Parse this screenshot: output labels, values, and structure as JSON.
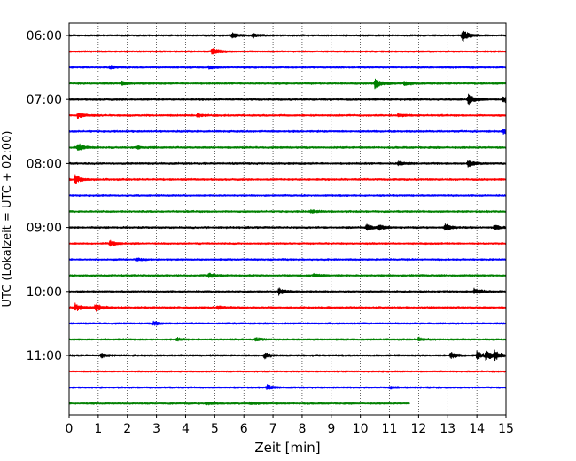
{
  "chart_data": {
    "type": "line",
    "chart_kind": "helicorder seismogram",
    "title": "",
    "xlabel": "Zeit  [min]",
    "ylabel": "UTC (Lokalzeit = UTC + 02:00)",
    "xlim": [
      0,
      15
    ],
    "x_ticks": [
      0,
      1,
      2,
      3,
      4,
      5,
      6,
      7,
      8,
      9,
      10,
      11,
      12,
      13,
      14,
      15
    ],
    "x_tick_labels": [
      "0",
      "1",
      "2",
      "3",
      "4",
      "5",
      "6",
      "7",
      "8",
      "9",
      "10",
      "11",
      "12",
      "13",
      "14",
      "15"
    ],
    "grid": {
      "x": true,
      "y": false,
      "style": "dotted"
    },
    "line_minutes": 15,
    "y_tick_labels": [
      "06:00",
      "07:00",
      "08:00",
      "09:00",
      "10:00",
      "11:00"
    ],
    "color_cycle": [
      "#000000",
      "#ff0000",
      "#0000ff",
      "#008000"
    ],
    "traces": [
      {
        "start": "06:00",
        "end_minute": 15,
        "color": "#000000",
        "noise": 0.28,
        "events": [
          {
            "t": 5.6,
            "a": 1.4
          },
          {
            "t": 6.3,
            "a": 0.9
          },
          {
            "t": 13.5,
            "a": 2.4
          }
        ]
      },
      {
        "start": "06:15",
        "end_minute": 15,
        "color": "#ff0000",
        "noise": 0.28,
        "events": [
          {
            "t": 4.9,
            "a": 1.6
          }
        ]
      },
      {
        "start": "06:30",
        "end_minute": 15,
        "color": "#0000ff",
        "noise": 0.28,
        "events": [
          {
            "t": 1.4,
            "a": 0.7
          },
          {
            "t": 4.8,
            "a": 0.6
          }
        ]
      },
      {
        "start": "06:45",
        "end_minute": 15,
        "color": "#008000",
        "noise": 0.3,
        "events": [
          {
            "t": 1.8,
            "a": 0.8
          },
          {
            "t": 10.5,
            "a": 2.2
          },
          {
            "t": 11.5,
            "a": 0.8
          }
        ]
      },
      {
        "start": "07:00",
        "end_minute": 15,
        "color": "#000000",
        "noise": 0.3,
        "events": [
          {
            "t": 13.7,
            "a": 2.3
          },
          {
            "t": 14.9,
            "a": 1.5
          }
        ]
      },
      {
        "start": "07:15",
        "end_minute": 15,
        "color": "#ff0000",
        "noise": 0.3,
        "events": [
          {
            "t": 0.3,
            "a": 1.3
          },
          {
            "t": 4.4,
            "a": 0.7
          },
          {
            "t": 11.3,
            "a": 0.7
          }
        ]
      },
      {
        "start": "07:30",
        "end_minute": 15,
        "color": "#0000ff",
        "noise": 0.3,
        "events": [
          {
            "t": 14.9,
            "a": 0.9
          }
        ]
      },
      {
        "start": "07:45",
        "end_minute": 15,
        "color": "#008000",
        "noise": 0.32,
        "events": [
          {
            "t": 0.3,
            "a": 1.5
          },
          {
            "t": 2.3,
            "a": 0.6
          }
        ]
      },
      {
        "start": "08:00",
        "end_minute": 15,
        "color": "#000000",
        "noise": 0.3,
        "events": [
          {
            "t": 11.3,
            "a": 0.9
          },
          {
            "t": 13.7,
            "a": 1.3
          }
        ]
      },
      {
        "start": "08:15",
        "end_minute": 15,
        "color": "#ff0000",
        "noise": 0.3,
        "events": [
          {
            "t": 0.2,
            "a": 1.8
          }
        ]
      },
      {
        "start": "08:30",
        "end_minute": 15,
        "color": "#0000ff",
        "noise": 0.28,
        "events": []
      },
      {
        "start": "08:45",
        "end_minute": 15,
        "color": "#008000",
        "noise": 0.3,
        "events": [
          {
            "t": 8.3,
            "a": 0.6
          }
        ]
      },
      {
        "start": "09:00",
        "end_minute": 15,
        "color": "#000000",
        "noise": 0.3,
        "events": [
          {
            "t": 10.2,
            "a": 1.4
          },
          {
            "t": 10.6,
            "a": 1.3
          },
          {
            "t": 12.9,
            "a": 1.4
          },
          {
            "t": 14.6,
            "a": 1.0
          }
        ]
      },
      {
        "start": "09:15",
        "end_minute": 15,
        "color": "#ff0000",
        "noise": 0.28,
        "events": [
          {
            "t": 1.4,
            "a": 1.1
          }
        ]
      },
      {
        "start": "09:30",
        "end_minute": 15,
        "color": "#0000ff",
        "noise": 0.28,
        "events": [
          {
            "t": 2.3,
            "a": 0.6
          }
        ]
      },
      {
        "start": "09:45",
        "end_minute": 15,
        "color": "#008000",
        "noise": 0.3,
        "events": [
          {
            "t": 4.8,
            "a": 0.8
          },
          {
            "t": 8.4,
            "a": 0.6
          }
        ]
      },
      {
        "start": "10:00",
        "end_minute": 15,
        "color": "#000000",
        "noise": 0.28,
        "events": [
          {
            "t": 7.2,
            "a": 1.3
          },
          {
            "t": 13.9,
            "a": 1.3
          }
        ]
      },
      {
        "start": "10:15",
        "end_minute": 15,
        "color": "#ff0000",
        "noise": 0.3,
        "events": [
          {
            "t": 0.2,
            "a": 1.6
          },
          {
            "t": 0.9,
            "a": 1.7
          },
          {
            "t": 5.1,
            "a": 0.6
          }
        ]
      },
      {
        "start": "10:30",
        "end_minute": 15,
        "color": "#0000ff",
        "noise": 0.28,
        "events": [
          {
            "t": 2.9,
            "a": 0.9
          }
        ]
      },
      {
        "start": "10:45",
        "end_minute": 15,
        "color": "#008000",
        "noise": 0.28,
        "events": [
          {
            "t": 3.7,
            "a": 0.6
          },
          {
            "t": 6.4,
            "a": 0.7
          },
          {
            "t": 12.0,
            "a": 0.7
          }
        ]
      },
      {
        "start": "11:00",
        "end_minute": 15,
        "color": "#000000",
        "noise": 0.3,
        "events": [
          {
            "t": 1.1,
            "a": 0.9
          },
          {
            "t": 6.7,
            "a": 1.2
          },
          {
            "t": 13.1,
            "a": 1.5
          },
          {
            "t": 14.0,
            "a": 1.6
          },
          {
            "t": 14.3,
            "a": 2.0
          },
          {
            "t": 14.6,
            "a": 1.6
          }
        ]
      },
      {
        "start": "11:15",
        "end_minute": 15,
        "color": "#ff0000",
        "noise": 0.26,
        "events": []
      },
      {
        "start": "11:30",
        "end_minute": 15,
        "color": "#0000ff",
        "noise": 0.28,
        "events": [
          {
            "t": 6.8,
            "a": 1.1
          },
          {
            "t": 11.0,
            "a": 0.6
          }
        ]
      },
      {
        "start": "11:45",
        "end_minute": 11.7,
        "color": "#008000",
        "noise": 0.28,
        "events": [
          {
            "t": 4.7,
            "a": 0.6
          },
          {
            "t": 6.2,
            "a": 0.6
          }
        ]
      }
    ]
  }
}
